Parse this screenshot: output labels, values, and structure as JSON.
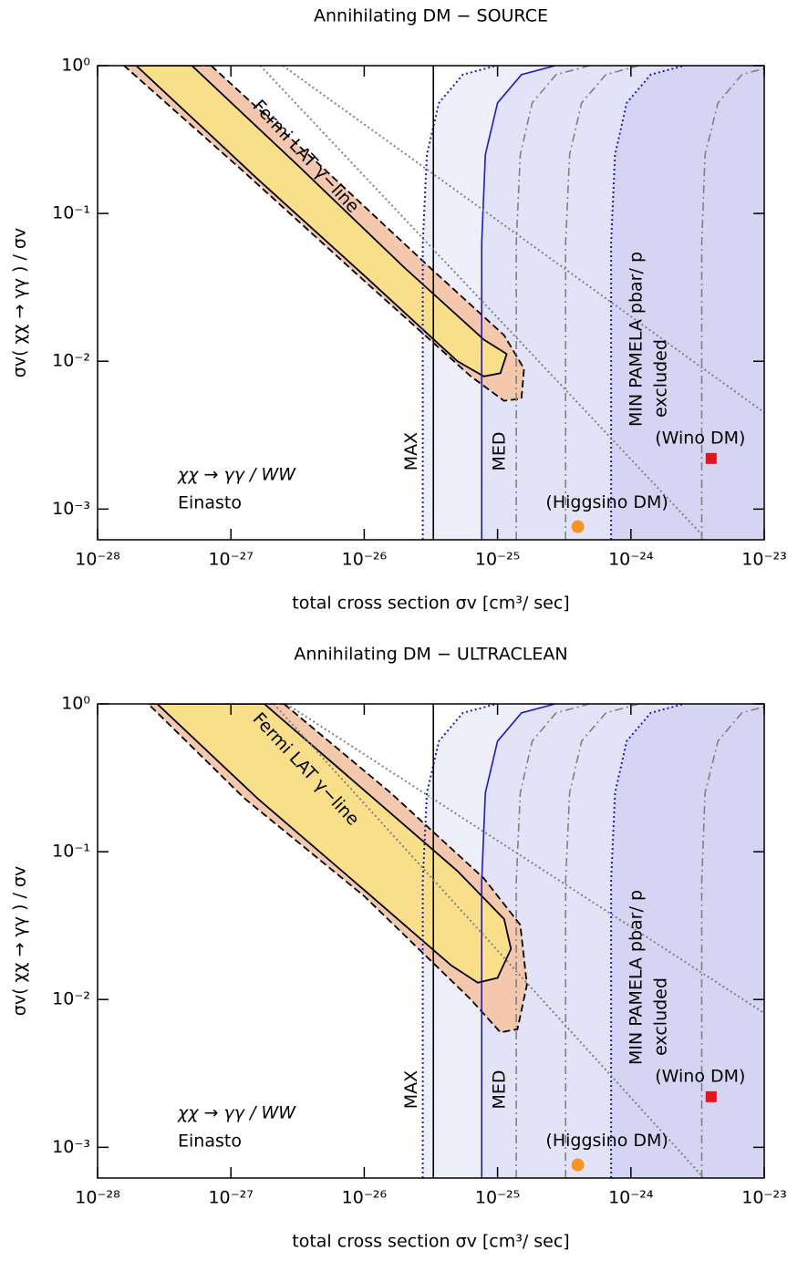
{
  "chart_data": [
    {
      "type": "line",
      "title": "Annihilating DM − SOURCE",
      "xlabel": "total cross section σv [cm³/ sec]",
      "ylabel": "σv( χχ → γγ ) / σv",
      "log_x": true,
      "log_y": true,
      "xlim": [
        1e-28,
        1e-23
      ],
      "ylim": [
        0.00062,
        1
      ],
      "xticks": [
        {
          "value": 1e-28,
          "label": "10⁻²⁸"
        },
        {
          "value": 1e-27,
          "label": "10⁻²⁷"
        },
        {
          "value": 1e-26,
          "label": "10⁻²⁶"
        },
        {
          "value": 1e-25,
          "label": "10⁻²⁵"
        },
        {
          "value": 1e-24,
          "label": "10⁻²⁴"
        },
        {
          "value": 1e-23,
          "label": "10⁻²³"
        }
      ],
      "yticks": [
        {
          "value": 0.001,
          "label": "10⁻³"
        },
        {
          "value": 0.01,
          "label": "10⁻²"
        },
        {
          "value": 0.1,
          "label": "10⁻¹"
        },
        {
          "value": 1,
          "label": "10⁰"
        }
      ],
      "series": [
        {
          "label": "MAX",
          "style": "dotted",
          "color": "#1a1acc",
          "fill": "#efeffb",
          "x": [
            2.75e-26,
            2.75e-26,
            2.95e-26,
            3.63e-26,
            5.5e-26,
            9.8e-26
          ],
          "y": [
            0.00062,
            0.063,
            0.25,
            0.56,
            0.87,
            1
          ]
        },
        {
          "label": "MED",
          "style": "solid",
          "color": "#1a1acc",
          "fill": "#e3e3f7",
          "x": [
            7.6e-26,
            7.6e-26,
            8.1e-26,
            1e-25,
            1.51e-25,
            2.7e-25
          ],
          "y": [
            0.00062,
            0.063,
            0.25,
            0.56,
            0.87,
            1
          ]
        },
        {
          "style": "dashdot",
          "color": "#808080",
          "x": [
            1.38e-25,
            1.38e-25,
            1.48e-25,
            1.82e-25,
            2.75e-25,
            4.9e-25
          ],
          "y": [
            0.00062,
            0.063,
            0.25,
            0.56,
            0.87,
            1
          ]
        },
        {
          "style": "dashdot",
          "color": "#808080",
          "x": [
            3.24e-25,
            3.24e-25,
            3.47e-25,
            4.27e-25,
            6.5e-25,
            1.15e-24
          ],
          "y": [
            0.00062,
            0.063,
            0.25,
            0.56,
            0.87,
            1
          ]
        },
        {
          "label": "MIN  PAMELA  pbar/ p",
          "style": "dotted",
          "color": "#1a1acc",
          "fill": "#d5d5f3",
          "x": [
            7.1e-25,
            7.1e-25,
            7.6e-25,
            9.3e-25,
            1.41e-24,
            2.5e-24
          ],
          "y": [
            0.00062,
            0.063,
            0.25,
            0.56,
            0.87,
            1
          ]
        },
        {
          "style": "dashdot",
          "color": "#808080",
          "x": [
            3.4e-24,
            3.4e-24,
            3.6e-24,
            4.5e-24,
            6.8e-24,
            1.2e-23
          ],
          "y": [
            0.00062,
            0.063,
            0.25,
            0.56,
            0.87,
            1
          ]
        },
        {
          "style": "solid",
          "color": "#000000",
          "x": [
            3.3e-26,
            3.3e-26
          ],
          "y": [
            0.00062,
            1
          ]
        },
        {
          "style": "dotted",
          "color": "#808080",
          "x": [
            2.45e-27,
            1e-23
          ],
          "y": [
            1,
            0.0045
          ]
        },
        {
          "style": "dotted",
          "color": "#808080",
          "x": [
            1.66e-27,
            3.47e-24
          ],
          "y": [
            1,
            0.00066
          ]
        },
        {
          "style": "dashed",
          "color": "#000000",
          "closed": true,
          "fill": "#f3c8ad",
          "x": [
            7.1e-28,
            5e-27,
            3.2e-26,
            1.12e-25,
            1.58e-25,
            1.51e-25,
            1.12e-25,
            6.3e-26,
            1e-26,
            1.26e-27,
            1.58e-28
          ],
          "y": [
            1,
            0.2,
            0.042,
            0.015,
            0.0089,
            0.0056,
            0.0054,
            0.0079,
            0.035,
            0.19,
            1
          ]
        },
        {
          "label": "Fermi LAT γ−line",
          "style": "solid",
          "color": "#000000",
          "closed": true,
          "fill": "#fadf8a",
          "x": [
            5.1e-28,
            3.2e-27,
            2e-26,
            7.9e-26,
            1.17e-25,
            1.05e-25,
            7.9e-26,
            5e-26,
            1e-26,
            1.6e-27,
            1.95e-28
          ],
          "y": [
            1,
            0.21,
            0.043,
            0.014,
            0.0112,
            0.0083,
            0.0079,
            0.01,
            0.038,
            0.17,
            1
          ]
        }
      ],
      "points": [
        {
          "label": "(Higgsino DM)",
          "shape": "circle",
          "color": "#f7941d",
          "x": 4e-25,
          "y": 0.00076
        },
        {
          "label": "(Wino DM)",
          "shape": "square",
          "color": "#e8141c",
          "x": 4e-24,
          "y": 0.0022
        }
      ],
      "annotations": [
        "χχ  →  γγ / WW",
        "Einasto",
        "excluded"
      ]
    },
    {
      "type": "line",
      "title": "Annihilating DM − ULTRACLEAN",
      "xlabel": "total cross section σv [cm³/ sec]",
      "ylabel": "σv( χχ → γγ ) / σv",
      "log_x": true,
      "log_y": true,
      "xlim": [
        1e-28,
        1e-23
      ],
      "ylim": [
        0.00062,
        1
      ],
      "xticks": [
        {
          "value": 1e-28,
          "label": "10⁻²⁸"
        },
        {
          "value": 1e-27,
          "label": "10⁻²⁷"
        },
        {
          "value": 1e-26,
          "label": "10⁻²⁶"
        },
        {
          "value": 1e-25,
          "label": "10⁻²⁵"
        },
        {
          "value": 1e-24,
          "label": "10⁻²⁴"
        },
        {
          "value": 1e-23,
          "label": "10⁻²³"
        }
      ],
      "yticks": [
        {
          "value": 0.001,
          "label": "10⁻³"
        },
        {
          "value": 0.01,
          "label": "10⁻²"
        },
        {
          "value": 0.1,
          "label": "10⁻¹"
        },
        {
          "value": 1,
          "label": "10⁰"
        }
      ],
      "series": [
        {
          "label": "MAX",
          "style": "dotted",
          "color": "#1a1acc",
          "fill": "#efeffb",
          "x": [
            2.75e-26,
            2.75e-26,
            2.95e-26,
            3.63e-26,
            5.5e-26,
            9.8e-26
          ],
          "y": [
            0.00062,
            0.063,
            0.25,
            0.56,
            0.87,
            1
          ]
        },
        {
          "label": "MED",
          "style": "solid",
          "color": "#1a1acc",
          "fill": "#e3e3f7",
          "x": [
            7.6e-26,
            7.6e-26,
            8.1e-26,
            1e-25,
            1.51e-25,
            2.7e-25
          ],
          "y": [
            0.00062,
            0.063,
            0.25,
            0.56,
            0.87,
            1
          ]
        },
        {
          "style": "dashdot",
          "color": "#808080",
          "x": [
            1.38e-25,
            1.38e-25,
            1.48e-25,
            1.82e-25,
            2.75e-25,
            4.9e-25
          ],
          "y": [
            0.00062,
            0.063,
            0.25,
            0.56,
            0.87,
            1
          ]
        },
        {
          "style": "dashdot",
          "color": "#808080",
          "x": [
            3.24e-25,
            3.24e-25,
            3.47e-25,
            4.27e-25,
            6.5e-25,
            1.15e-24
          ],
          "y": [
            0.00062,
            0.063,
            0.25,
            0.56,
            0.87,
            1
          ]
        },
        {
          "label": "MIN  PAMELA  pbar/ p",
          "style": "dotted",
          "color": "#1a1acc",
          "fill": "#d5d5f3",
          "x": [
            7.1e-25,
            7.1e-25,
            7.6e-25,
            9.3e-25,
            1.41e-24,
            2.5e-24
          ],
          "y": [
            0.00062,
            0.063,
            0.25,
            0.56,
            0.87,
            1
          ]
        },
        {
          "style": "dashdot",
          "color": "#808080",
          "x": [
            3.4e-24,
            3.4e-24,
            3.6e-24,
            4.5e-24,
            6.8e-24,
            1.2e-23
          ],
          "y": [
            0.00062,
            0.063,
            0.25,
            0.56,
            0.87,
            1
          ]
        },
        {
          "style": "solid",
          "color": "#000000",
          "x": [
            3.3e-26,
            3.3e-26
          ],
          "y": [
            0.00062,
            1
          ]
        },
        {
          "style": "dotted",
          "color": "#808080",
          "x": [
            2.6e-27,
            1e-23
          ],
          "y": [
            1,
            0.0081
          ]
        },
        {
          "style": "dotted",
          "color": "#808080",
          "x": [
            2.1e-27,
            3.47e-24
          ],
          "y": [
            1,
            0.00063
          ]
        },
        {
          "style": "dashed",
          "color": "#000000",
          "closed": true,
          "fill": "#f3c8ad",
          "x": [
            2.5e-27,
            1.58e-26,
            7.9e-26,
            1.48e-25,
            1.66e-25,
            1.41e-25,
            1.05e-25,
            6.3e-26,
            1e-26,
            1.26e-27,
            2.4e-28
          ],
          "y": [
            1,
            0.25,
            0.066,
            0.032,
            0.0126,
            0.0063,
            0.006,
            0.01,
            0.05,
            0.23,
            1
          ]
        },
        {
          "label": "Fermi LAT γ−line",
          "style": "solid",
          "color": "#000000",
          "closed": true,
          "fill": "#fadf8a",
          "x": [
            1.78e-27,
            1e-26,
            5e-26,
            1.12e-25,
            1.26e-25,
            1e-25,
            7.1e-26,
            4.5e-26,
            1e-26,
            1.58e-27,
            2.8e-28
          ],
          "y": [
            1,
            0.26,
            0.074,
            0.035,
            0.022,
            0.014,
            0.013,
            0.017,
            0.055,
            0.23,
            1
          ]
        }
      ],
      "points": [
        {
          "label": "(Higgsino DM)",
          "shape": "circle",
          "color": "#f7941d",
          "x": 4e-25,
          "y": 0.00076
        },
        {
          "label": "(Wino DM)",
          "shape": "square",
          "color": "#e8141c",
          "x": 4e-24,
          "y": 0.0022
        }
      ],
      "annotations": [
        "χχ  →  γγ / WW",
        "Einasto",
        "excluded"
      ]
    }
  ]
}
